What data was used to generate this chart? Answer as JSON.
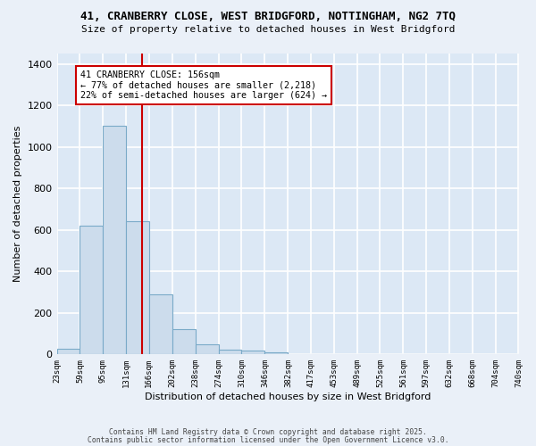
{
  "title_line1": "41, CRANBERRY CLOSE, WEST BRIDGFORD, NOTTINGHAM, NG2 7TQ",
  "title_line2": "Size of property relative to detached houses in West Bridgford",
  "xlabel": "Distribution of detached houses by size in West Bridgford",
  "ylabel": "Number of detached properties",
  "bins": [
    23,
    59,
    95,
    131,
    166,
    202,
    238,
    274,
    310,
    346,
    382,
    417,
    453,
    489,
    525,
    561,
    597,
    632,
    668,
    704,
    740
  ],
  "counts": [
    28,
    622,
    1100,
    640,
    290,
    120,
    50,
    22,
    20,
    10,
    0,
    0,
    0,
    0,
    0,
    0,
    0,
    0,
    0,
    0
  ],
  "bar_color": "#ccdcec",
  "bar_edge_color": "#7aaac8",
  "property_size": 156,
  "annotation_text": "41 CRANBERRY CLOSE: 156sqm\n← 77% of detached houses are smaller (2,218)\n22% of semi-detached houses are larger (624) →",
  "annotation_box_color": "#ffffff",
  "annotation_box_edge": "#cc0000",
  "vline_color": "#cc0000",
  "ylim": [
    0,
    1450
  ],
  "yticks": [
    0,
    200,
    400,
    600,
    800,
    1000,
    1200,
    1400
  ],
  "bg_color": "#dce8f5",
  "grid_color": "#ffffff",
  "fig_bg_color": "#eaf0f8",
  "footer_line1": "Contains HM Land Registry data © Crown copyright and database right 2025.",
  "footer_line2": "Contains public sector information licensed under the Open Government Licence v3.0."
}
